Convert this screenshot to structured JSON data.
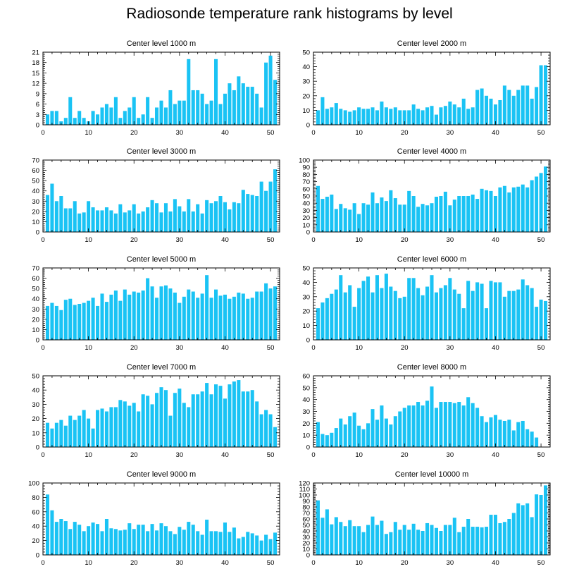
{
  "title": "Radiosonde temperature rank histograms by level",
  "colors": {
    "bar": "#1ac3f4",
    "axis": "#000000"
  },
  "chart_data": [
    {
      "type": "bar",
      "title": "Center level 1000 m",
      "xlim": [
        0,
        52
      ],
      "ylim": [
        0,
        21
      ],
      "xticks": [
        0,
        10,
        20,
        30,
        40,
        50
      ],
      "yticks": [
        0,
        3,
        6,
        9,
        12,
        15,
        18,
        21
      ],
      "values": [
        3,
        4,
        4,
        1,
        2,
        8,
        2,
        4,
        2,
        1,
        4,
        3,
        5,
        6,
        5,
        8,
        2,
        4,
        5,
        8,
        2,
        3,
        8,
        2,
        5,
        7,
        5,
        10,
        6,
        7,
        7,
        19,
        10,
        10,
        9,
        6,
        7,
        19,
        6,
        9,
        12,
        10,
        14,
        12,
        11,
        11,
        9,
        5,
        18,
        20,
        13
      ]
    },
    {
      "type": "bar",
      "title": "Center level 2000 m",
      "xlim": [
        0,
        52
      ],
      "ylim": [
        0,
        50
      ],
      "xticks": [
        0,
        10,
        20,
        30,
        40,
        50
      ],
      "yticks": [
        0,
        10,
        20,
        30,
        40,
        50
      ],
      "values": [
        10,
        19,
        11,
        12,
        15,
        11,
        10,
        9,
        10,
        12,
        11,
        11,
        12,
        10,
        16,
        12,
        11,
        12,
        10,
        10,
        10,
        14,
        11,
        10,
        12,
        13,
        7,
        12,
        13,
        16,
        14,
        12,
        18,
        11,
        12,
        24,
        25,
        20,
        18,
        14,
        17,
        27,
        24,
        20,
        24,
        27,
        27,
        18,
        26,
        41,
        41
      ]
    },
    {
      "type": "bar",
      "title": "Center level 3000 m",
      "xlim": [
        0,
        52
      ],
      "ylim": [
        0,
        70
      ],
      "xticks": [
        0,
        10,
        20,
        30,
        40,
        50
      ],
      "yticks": [
        0,
        10,
        20,
        30,
        40,
        50,
        60,
        70
      ],
      "values": [
        36,
        47,
        30,
        35,
        23,
        23,
        30,
        18,
        19,
        30,
        24,
        21,
        21,
        24,
        21,
        18,
        27,
        19,
        21,
        27,
        18,
        20,
        24,
        31,
        28,
        19,
        28,
        20,
        32,
        25,
        20,
        32,
        20,
        27,
        18,
        31,
        28,
        30,
        35,
        29,
        22,
        29,
        28,
        41,
        37,
        36,
        35,
        49,
        40,
        49,
        61
      ]
    },
    {
      "type": "bar",
      "title": "Center level 4000 m",
      "xlim": [
        0,
        52
      ],
      "ylim": [
        0,
        100
      ],
      "xticks": [
        0,
        10,
        20,
        30,
        40,
        50
      ],
      "yticks": [
        0,
        10,
        20,
        30,
        40,
        50,
        60,
        70,
        80,
        90,
        100
      ],
      "values": [
        64,
        46,
        49,
        52,
        32,
        39,
        33,
        31,
        40,
        25,
        40,
        38,
        55,
        40,
        48,
        43,
        58,
        47,
        38,
        38,
        57,
        50,
        35,
        39,
        37,
        40,
        49,
        50,
        56,
        37,
        45,
        50,
        50,
        50,
        52,
        46,
        60,
        58,
        57,
        50,
        62,
        64,
        55,
        62,
        63,
        66,
        62,
        72,
        77,
        82,
        91
      ]
    },
    {
      "type": "bar",
      "title": "Center level 5000 m",
      "xlim": [
        0,
        52
      ],
      "ylim": [
        0,
        70
      ],
      "xticks": [
        0,
        10,
        20,
        30,
        40,
        50
      ],
      "yticks": [
        0,
        10,
        20,
        30,
        40,
        50,
        60,
        70
      ],
      "values": [
        33,
        36,
        33,
        29,
        39,
        40,
        34,
        35,
        36,
        38,
        41,
        33,
        45,
        37,
        44,
        48,
        38,
        49,
        44,
        47,
        46,
        48,
        60,
        52,
        41,
        52,
        53,
        50,
        46,
        36,
        42,
        49,
        47,
        41,
        45,
        63,
        41,
        49,
        43,
        44,
        40,
        42,
        46,
        45,
        40,
        41,
        47,
        47,
        55,
        50,
        52
      ]
    },
    {
      "type": "bar",
      "title": "Center level 6000 m",
      "xlim": [
        0,
        52
      ],
      "ylim": [
        0,
        50
      ],
      "xticks": [
        0,
        10,
        20,
        30,
        40,
        50
      ],
      "yticks": [
        0,
        10,
        20,
        30,
        40,
        50
      ],
      "values": [
        22,
        26,
        29,
        32,
        35,
        45,
        33,
        38,
        23,
        36,
        41,
        44,
        33,
        45,
        36,
        46,
        37,
        34,
        29,
        30,
        43,
        43,
        36,
        31,
        37,
        45,
        33,
        36,
        38,
        43,
        35,
        32,
        22,
        41,
        34,
        40,
        39,
        22,
        41,
        40,
        40,
        30,
        34,
        34,
        35,
        42,
        38,
        36,
        23,
        28,
        27
      ]
    },
    {
      "type": "bar",
      "title": "Center level 7000 m",
      "xlim": [
        0,
        52
      ],
      "ylim": [
        0,
        50
      ],
      "xticks": [
        0,
        10,
        20,
        30,
        40,
        50
      ],
      "yticks": [
        0,
        10,
        20,
        30,
        40,
        50
      ],
      "values": [
        17,
        13,
        17,
        19,
        15,
        22,
        19,
        22,
        26,
        20,
        13,
        26,
        27,
        25,
        28,
        28,
        33,
        32,
        29,
        31,
        25,
        37,
        36,
        30,
        38,
        42,
        40,
        22,
        38,
        41,
        31,
        28,
        37,
        37,
        39,
        45,
        37,
        44,
        43,
        34,
        44,
        46,
        47,
        39,
        39,
        40,
        32,
        23,
        26,
        23,
        14
      ]
    },
    {
      "type": "bar",
      "title": "Center level 8000 m",
      "xlim": [
        0,
        52
      ],
      "ylim": [
        0,
        60
      ],
      "xticks": [
        0,
        10,
        20,
        30,
        40,
        50
      ],
      "yticks": [
        0,
        10,
        20,
        30,
        40,
        50,
        60
      ],
      "values": [
        21,
        11,
        10,
        12,
        16,
        24,
        19,
        26,
        29,
        18,
        15,
        20,
        32,
        23,
        35,
        24,
        19,
        26,
        30,
        33,
        35,
        35,
        38,
        35,
        39,
        51,
        33,
        38,
        38,
        38,
        37,
        38,
        35,
        42,
        37,
        33,
        26,
        21,
        25,
        27,
        23,
        22,
        23,
        14,
        21,
        22,
        15,
        13,
        8
      ]
    },
    {
      "type": "bar",
      "title": "Center level 9000 m",
      "xlim": [
        0,
        52
      ],
      "ylim": [
        0,
        100
      ],
      "xticks": [
        0,
        10,
        20,
        30,
        40,
        50
      ],
      "yticks": [
        0,
        20,
        40,
        60,
        80,
        100
      ],
      "values": [
        84,
        62,
        46,
        50,
        47,
        36,
        46,
        42,
        33,
        40,
        45,
        43,
        33,
        50,
        37,
        36,
        34,
        35,
        44,
        36,
        42,
        42,
        33,
        43,
        34,
        44,
        40,
        33,
        29,
        39,
        35,
        46,
        42,
        33,
        28,
        49,
        33,
        33,
        32,
        45,
        32,
        38,
        23,
        25,
        32,
        30,
        27,
        20,
        28,
        22,
        31
      ]
    },
    {
      "type": "bar",
      "title": "Center level 10000 m",
      "xlim": [
        0,
        52
      ],
      "ylim": [
        0,
        120
      ],
      "xticks": [
        0,
        10,
        20,
        30,
        40,
        50
      ],
      "yticks": [
        0,
        10,
        20,
        30,
        40,
        50,
        60,
        70,
        80,
        90,
        100,
        110,
        120
      ],
      "values": [
        91,
        62,
        76,
        51,
        63,
        55,
        48,
        58,
        48,
        48,
        38,
        50,
        64,
        50,
        57,
        35,
        38,
        55,
        42,
        50,
        42,
        52,
        42,
        40,
        53,
        50,
        45,
        40,
        50,
        50,
        62,
        38,
        47,
        60,
        47,
        47,
        46,
        47,
        67,
        67,
        53,
        55,
        60,
        70,
        86,
        83,
        86,
        63,
        101,
        100,
        116
      ]
    }
  ]
}
